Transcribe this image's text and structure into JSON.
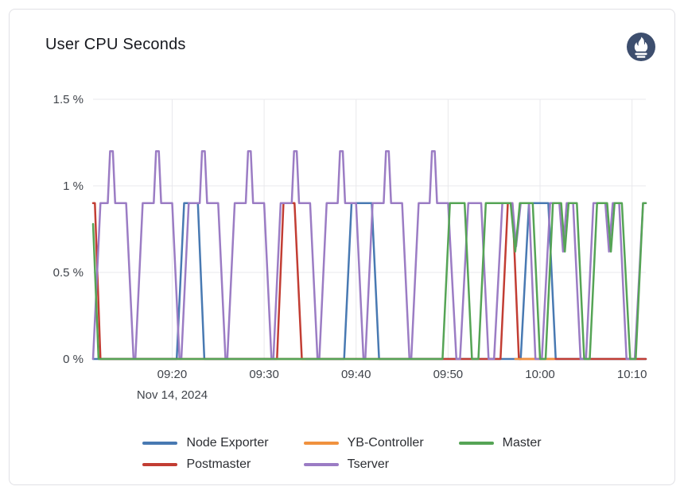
{
  "header": {
    "logo": "prometheus-logo",
    "logo_color": "#3d4e6e"
  },
  "chart_data": {
    "type": "line",
    "title": "User CPU Seconds",
    "xlabel": "",
    "ylabel": "",
    "grid": true,
    "legend_position": "bottom",
    "x_axis": {
      "kind": "time",
      "date_label": "Nov 14, 2024",
      "ticks": [
        "09:20",
        "09:30",
        "09:40",
        "09:50",
        "10:00",
        "10:10"
      ],
      "tick_minutes": [
        20,
        30,
        40,
        50,
        60,
        70
      ],
      "range_minutes": [
        11.4,
        71.5
      ]
    },
    "y_axis": {
      "unit": "%",
      "ticks": [
        "0 %",
        "0.5 %",
        "1 %",
        "1.5 %"
      ],
      "tick_values": [
        0,
        0.5,
        1,
        1.5
      ],
      "range": [
        0,
        1.5
      ]
    },
    "z_order": [
      "Node Exporter",
      "Postmaster",
      "YB-Controller",
      "Tserver",
      "Master"
    ],
    "series": [
      {
        "name": "Node Exporter",
        "color": "#4879b2",
        "segments": [
          [
            [
              11.4,
              0
            ],
            [
              20.5,
              0
            ],
            [
              21.3,
              0.9
            ],
            [
              22.8,
              0.9
            ],
            [
              23.5,
              0
            ],
            [
              38.7,
              0
            ],
            [
              39.5,
              0.9
            ],
            [
              41.7,
              0.9
            ],
            [
              42.5,
              0
            ],
            [
              57.9,
              0
            ],
            [
              58.8,
              0.9
            ],
            [
              60.9,
              0.9
            ],
            [
              61.7,
              0
            ],
            [
              71.5,
              0
            ]
          ]
        ]
      },
      {
        "name": "YB-Controller",
        "color": "#f0913e",
        "segments": [
          [
            [
              31.3,
              0
            ],
            [
              34.5,
              0
            ]
          ],
          [
            [
              57.3,
              0
            ],
            [
              61.5,
              0
            ]
          ]
        ]
      },
      {
        "name": "Master",
        "color": "#55a455",
        "segments": [
          [
            [
              11.4,
              0.78
            ],
            [
              12.0,
              0
            ],
            [
              49.4,
              0
            ],
            [
              50.2,
              0.9
            ],
            [
              51.8,
              0.9
            ],
            [
              52.6,
              0
            ],
            [
              53.3,
              0
            ],
            [
              54.1,
              0.9
            ],
            [
              56.8,
              0.9
            ],
            [
              57.3,
              0.62
            ],
            [
              57.8,
              0.9
            ],
            [
              59.2,
              0.9
            ],
            [
              60.0,
              0
            ],
            [
              60.6,
              0
            ],
            [
              61.4,
              0.9
            ],
            [
              62.3,
              0.9
            ],
            [
              62.7,
              0.62
            ],
            [
              63.1,
              0.9
            ],
            [
              64.0,
              0.9
            ],
            [
              64.8,
              0
            ],
            [
              65.4,
              0
            ],
            [
              66.2,
              0.9
            ],
            [
              67.3,
              0.9
            ],
            [
              67.7,
              0.62
            ],
            [
              68.1,
              0.9
            ],
            [
              68.9,
              0.9
            ],
            [
              69.8,
              0
            ],
            [
              70.4,
              0
            ],
            [
              71.2,
              0.9
            ],
            [
              71.5,
              0.9
            ]
          ]
        ]
      },
      {
        "name": "Postmaster",
        "color": "#c23d33",
        "segments": [
          [
            [
              11.4,
              0.9
            ],
            [
              11.6,
              0.9
            ],
            [
              12.2,
              0
            ],
            [
              31.4,
              0
            ],
            [
              32.1,
              0.9
            ],
            [
              33.3,
              0.9
            ],
            [
              34.1,
              0
            ],
            [
              55.7,
              0
            ],
            [
              56.5,
              0.9
            ],
            [
              57.0,
              0.9
            ],
            [
              57.7,
              0
            ],
            [
              71.5,
              0
            ]
          ]
        ]
      },
      {
        "name": "Tserver",
        "color": "#9b7cc4",
        "segments": [
          [
            [
              11.4,
              0
            ],
            [
              12.2,
              0.9
            ],
            [
              13.0,
              0.9
            ],
            [
              13.25,
              1.2
            ],
            [
              13.55,
              1.2
            ],
            [
              13.8,
              0.9
            ],
            [
              15.0,
              0.9
            ],
            [
              15.8,
              0
            ],
            [
              16.0,
              0
            ],
            [
              16.8,
              0.9
            ],
            [
              18.0,
              0.9
            ],
            [
              18.25,
              1.2
            ],
            [
              18.55,
              1.2
            ],
            [
              18.8,
              0.9
            ],
            [
              20.0,
              0.9
            ],
            [
              20.8,
              0
            ],
            [
              21.0,
              0
            ],
            [
              21.8,
              0.9
            ],
            [
              23.0,
              0.9
            ],
            [
              23.25,
              1.2
            ],
            [
              23.55,
              1.2
            ],
            [
              23.8,
              0.9
            ],
            [
              25.0,
              0.9
            ],
            [
              25.8,
              0
            ],
            [
              26.0,
              0
            ],
            [
              26.8,
              0.9
            ],
            [
              28.0,
              0.9
            ],
            [
              28.25,
              1.2
            ],
            [
              28.55,
              1.2
            ],
            [
              28.8,
              0.9
            ],
            [
              30.0,
              0.9
            ],
            [
              30.8,
              0
            ],
            [
              31.0,
              0
            ],
            [
              31.8,
              0.9
            ],
            [
              33.0,
              0.9
            ],
            [
              33.25,
              1.2
            ],
            [
              33.55,
              1.2
            ],
            [
              33.8,
              0.9
            ],
            [
              35.0,
              0.9
            ],
            [
              35.8,
              0
            ],
            [
              36.0,
              0
            ],
            [
              36.8,
              0.9
            ],
            [
              38.0,
              0.9
            ],
            [
              38.25,
              1.2
            ],
            [
              38.55,
              1.2
            ],
            [
              38.8,
              0.9
            ],
            [
              40.0,
              0.9
            ],
            [
              40.8,
              0
            ],
            [
              41.0,
              0
            ],
            [
              41.8,
              0.9
            ],
            [
              43.0,
              0.9
            ],
            [
              43.25,
              1.2
            ],
            [
              43.55,
              1.2
            ],
            [
              43.8,
              0.9
            ],
            [
              45.0,
              0.9
            ],
            [
              45.8,
              0
            ],
            [
              46.0,
              0
            ],
            [
              46.8,
              0.9
            ],
            [
              48.0,
              0.9
            ],
            [
              48.25,
              1.2
            ],
            [
              48.55,
              1.2
            ],
            [
              48.8,
              0.9
            ],
            [
              50.0,
              0.9
            ],
            [
              50.9,
              0
            ],
            [
              51.3,
              0
            ],
            [
              52.2,
              0.9
            ],
            [
              53.6,
              0.9
            ],
            [
              54.4,
              0
            ],
            [
              55.0,
              0
            ],
            [
              55.9,
              0.9
            ],
            [
              57.0,
              0.9
            ],
            [
              57.4,
              0.65
            ],
            [
              57.9,
              0.9
            ],
            [
              58.8,
              0.9
            ],
            [
              59.5,
              0
            ],
            [
              60.2,
              0
            ],
            [
              61.1,
              0.9
            ],
            [
              62.1,
              0.9
            ],
            [
              62.5,
              0.62
            ],
            [
              62.9,
              0.9
            ],
            [
              63.6,
              0.9
            ],
            [
              64.4,
              0
            ],
            [
              65.0,
              0
            ],
            [
              65.8,
              0.9
            ],
            [
              67.1,
              0.9
            ],
            [
              67.5,
              0.62
            ],
            [
              67.9,
              0.9
            ],
            [
              68.6,
              0.9
            ],
            [
              69.4,
              0
            ],
            [
              70.3,
              0
            ],
            [
              71.2,
              0.9
            ],
            [
              71.5,
              0.9
            ]
          ]
        ]
      }
    ]
  },
  "style": {
    "grid_color": "#e8e8ec",
    "tick_text_color": "#3f434a",
    "line_width": 2.5
  }
}
